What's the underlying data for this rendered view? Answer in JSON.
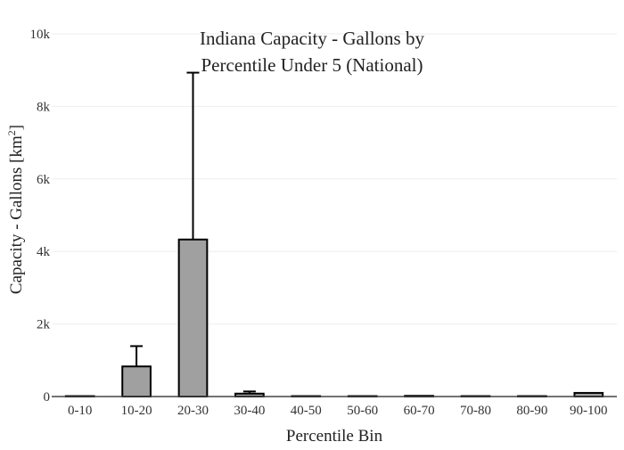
{
  "chart_data": {
    "type": "bar",
    "title": "Indiana Capacity - Gallons by Percentile Under 5 (National)",
    "title_lines": [
      "Indiana Capacity - Gallons by",
      "Percentile Under 5 (National)"
    ],
    "xlabel": "Percentile Bin",
    "ylabel_main": "Capacity - Gallons  [km",
    "ylabel_sup": "2",
    "ylabel_end": "]",
    "categories": [
      "0-10",
      "10-20",
      "20-30",
      "30-40",
      "40-50",
      "50-60",
      "60-70",
      "70-80",
      "80-90",
      "90-100"
    ],
    "values": [
      0,
      830,
      4330,
      80,
      0,
      0,
      20,
      0,
      0,
      100
    ],
    "error_plus": [
      0,
      560,
      4600,
      60,
      0,
      0,
      0,
      0,
      0,
      0
    ],
    "ylim": [
      0,
      10000
    ],
    "yticks": [
      0,
      2000,
      4000,
      6000,
      8000,
      10000
    ],
    "ytick_labels": [
      "0",
      "2k",
      "4k",
      "6k",
      "8k",
      "10k"
    ],
    "grid": true,
    "colors": {
      "bar_fill": "#a0a0a0",
      "bar_stroke": "#000000",
      "grid": "#eeeeee"
    }
  }
}
